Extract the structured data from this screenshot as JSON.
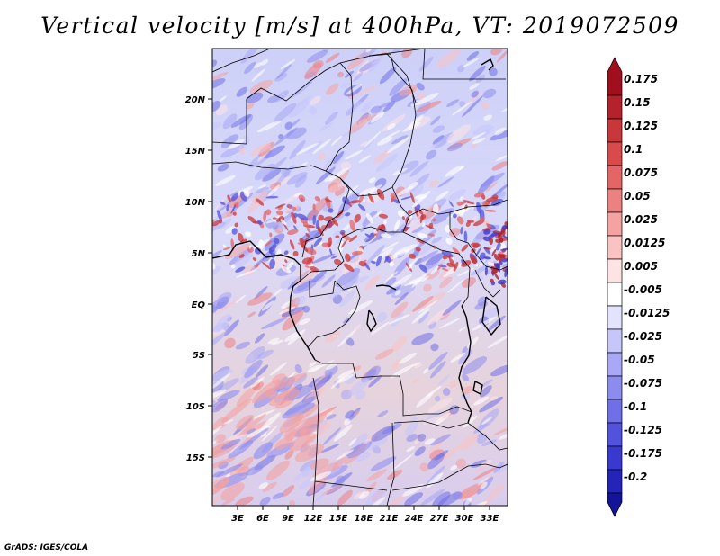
{
  "title": "Vertical velocity [m/s] at 400hPa, VT: 2019072509",
  "credit": "GrADS: IGES/COLA",
  "map": {
    "lon_range": [
      0,
      36
    ],
    "lat_range": [
      -20,
      25
    ],
    "lon_ticks": [
      "3E",
      "6E",
      "9E",
      "12E",
      "15E",
      "18E",
      "21E",
      "24E",
      "27E",
      "30E",
      "33E"
    ],
    "lat_ticks": [
      "20N",
      "15N",
      "10N",
      "5N",
      "EQ",
      "5S",
      "10S",
      "15S"
    ],
    "colors": {
      "positive": "#c83232",
      "negative": "#3f3fdb",
      "border": "#000000"
    }
  },
  "colorbar": {
    "labels": [
      "0.175",
      "0.15",
      "0.125",
      "0.1",
      "0.075",
      "0.05",
      "0.025",
      "0.0125",
      "0.005",
      "-0.005",
      "-0.0125",
      "-0.025",
      "-0.05",
      "-0.075",
      "-0.1",
      "-0.125",
      "-0.175",
      "-0.2"
    ],
    "colors": [
      "#a00f1e",
      "#b4232c",
      "#c8373a",
      "#d94b4b",
      "#e36565",
      "#ec8181",
      "#f4a2a2",
      "#f9c3c3",
      "#fde3e3",
      "#ffffff",
      "#e3e3fe",
      "#c6c6fb",
      "#a8a8f6",
      "#8c8cef",
      "#6f6fe6",
      "#5252dc",
      "#3939cf",
      "#2424b8",
      "#14149b"
    ]
  }
}
